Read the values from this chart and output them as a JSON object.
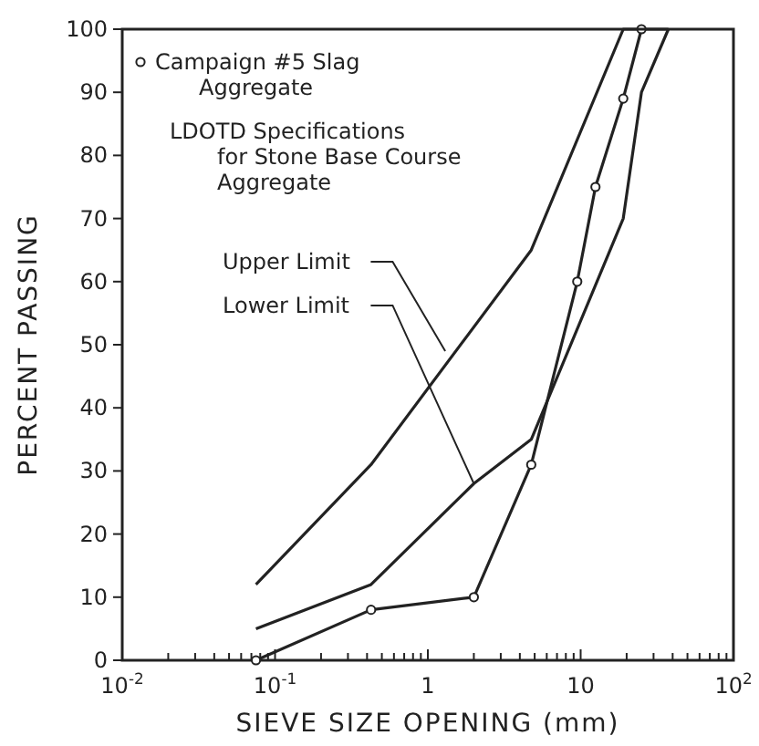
{
  "chart_data": {
    "type": "line",
    "xlabel": "SIEVE SIZE OPENING (mm)",
    "ylabel": "PERCENT PASSING",
    "log": "x",
    "xlim": [
      0.01,
      100
    ],
    "ylim": [
      0,
      100
    ],
    "xticks": [
      {
        "value": 0.01,
        "label": "10$^{-2}$"
      },
      {
        "value": 0.02,
        "label": null
      },
      {
        "value": 0.03,
        "label": null
      },
      {
        "value": 0.04,
        "label": null
      },
      {
        "value": 0.05,
        "label": null
      },
      {
        "value": 0.06,
        "label": null
      },
      {
        "value": 0.07,
        "label": null
      },
      {
        "value": 0.08,
        "label": null
      },
      {
        "value": 0.09,
        "label": null
      },
      {
        "value": 0.1,
        "label": "10$^{-1}$"
      },
      {
        "value": 0.2,
        "label": null
      },
      {
        "value": 0.3,
        "label": null
      },
      {
        "value": 0.4,
        "label": null
      },
      {
        "value": 0.5,
        "label": null
      },
      {
        "value": 0.6,
        "label": null
      },
      {
        "value": 0.7,
        "label": null
      },
      {
        "value": 0.8,
        "label": null
      },
      {
        "value": 0.9,
        "label": null
      },
      {
        "value": 1,
        "label": "1"
      },
      {
        "value": 2,
        "label": null
      },
      {
        "value": 3,
        "label": null
      },
      {
        "value": 4,
        "label": null
      },
      {
        "value": 5,
        "label": null
      },
      {
        "value": 6,
        "label": null
      },
      {
        "value": 7,
        "label": null
      },
      {
        "value": 8,
        "label": null
      },
      {
        "value": 9,
        "label": null
      },
      {
        "value": 10,
        "label": "10"
      },
      {
        "value": 20,
        "label": null
      },
      {
        "value": 30,
        "label": null
      },
      {
        "value": 40,
        "label": null
      },
      {
        "value": 50,
        "label": null
      },
      {
        "value": 60,
        "label": null
      },
      {
        "value": 70,
        "label": null
      },
      {
        "value": 80,
        "label": null
      },
      {
        "value": 90,
        "label": null
      },
      {
        "value": 100,
        "label": "10$^{2}$"
      }
    ],
    "yticks": [
      0,
      10,
      20,
      30,
      40,
      50,
      60,
      70,
      80,
      90,
      100
    ],
    "grid": false,
    "legend": "top left",
    "line_style": "solid",
    "series": [
      {
        "name": "Campaign #5 Slag Aggregate",
        "color": "#222222",
        "marker": "circle",
        "x": [
          0.075,
          0.425,
          2,
          4.75,
          9.5,
          12.5,
          19,
          25
        ],
        "values": [
          0,
          8,
          10,
          31,
          60,
          75,
          89,
          100
        ]
      },
      {
        "color": "#222222",
        "marker": "none",
        "x": [
          0.075,
          0.425,
          4.75,
          19,
          37.5
        ],
        "values": [
          12,
          31,
          65,
          100,
          100
        ]
      },
      {
        "color": "#222222",
        "marker": "none",
        "x": [
          0.075,
          0.425,
          2,
          4.75,
          19,
          25,
          37.5
        ],
        "values": [
          5,
          12,
          28,
          35,
          70,
          90,
          100
        ]
      }
    ],
    "annotations": [
      "LDOTD Specifications for Stone Base Course Aggregate",
      {
        "text": "Upper Limit",
        "x": 1.3,
        "y": 49
      },
      {
        "text": "Lower Limit",
        "x": 2,
        "y": 28
      }
    ]
  }
}
